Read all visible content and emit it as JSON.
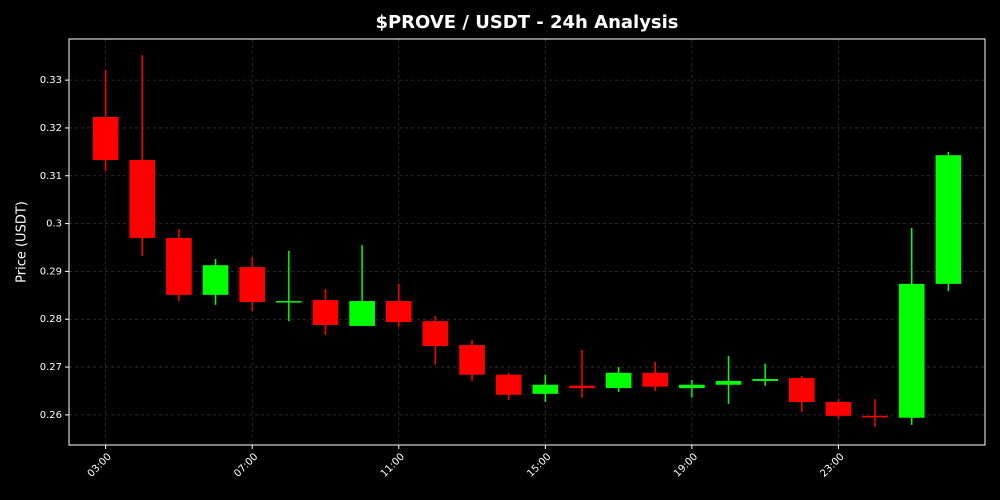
{
  "chart_data": {
    "type": "candlestick",
    "title": "$PROVE / USDT - 24h Analysis",
    "y_label": "Price (USDT)",
    "categories": [
      "03:00",
      null,
      null,
      null,
      "07:00",
      null,
      null,
      null,
      "11:00",
      null,
      null,
      null,
      "15:00",
      null,
      null,
      null,
      "19:00",
      null,
      null,
      null,
      "23:00",
      null,
      null,
      null
    ],
    "open": [
      0.3223,
      0.3133,
      0.297,
      0.2851,
      0.2909,
      0.2836,
      0.284,
      0.2786,
      0.2838,
      0.2796,
      0.2746,
      0.2684,
      0.2644,
      0.2661,
      0.2656,
      0.2688,
      0.2656,
      0.2663,
      0.2671,
      0.2677,
      0.2627,
      0.2598,
      0.2594,
      0.2874
    ],
    "high": [
      0.3321,
      0.3352,
      0.2989,
      0.2926,
      0.293,
      0.2943,
      0.2863,
      0.2955,
      0.2874,
      0.2807,
      0.2757,
      0.2688,
      0.2684,
      0.2736,
      0.27,
      0.2711,
      0.2673,
      0.2723,
      0.2707,
      0.2681,
      0.2633,
      0.2633,
      0.2991,
      0.315
    ],
    "low": [
      0.311,
      0.2932,
      0.2838,
      0.283,
      0.2817,
      0.2796,
      0.2767,
      0.2786,
      0.2784,
      0.2705,
      0.2671,
      0.2631,
      0.2627,
      0.2636,
      0.2648,
      0.265,
      0.2636,
      0.2623,
      0.2661,
      0.2606,
      0.2592,
      0.2575,
      0.2579,
      0.2859
    ],
    "close": [
      0.3133,
      0.297,
      0.2851,
      0.2913,
      0.2836,
      0.2838,
      0.2788,
      0.2838,
      0.2794,
      0.2744,
      0.2684,
      0.2642,
      0.2663,
      0.2656,
      0.2688,
      0.2659,
      0.2663,
      0.2671,
      0.2675,
      0.2627,
      0.2598,
      0.2596,
      0.2874,
      0.3143
    ],
    "up_color": "#00ff00",
    "down_color": "#ff0000",
    "ylim": [
      0.2537,
      0.3386
    ],
    "yticks": [
      0.26,
      0.27,
      0.28,
      0.29,
      0.3,
      0.31,
      0.32,
      0.33
    ],
    "grid": true
  }
}
